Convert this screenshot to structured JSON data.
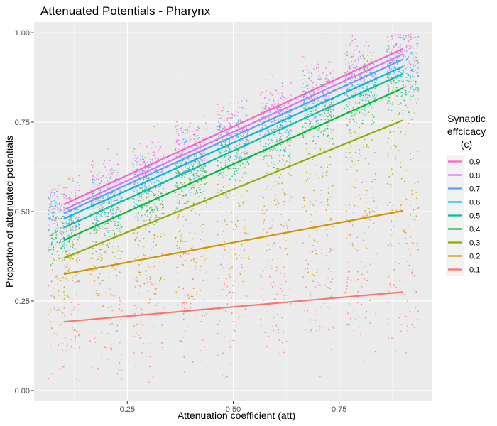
{
  "chart_data": {
    "type": "scatter",
    "title": "Attenuated Potentials - Pharynx",
    "xlabel": "Attenuation coefficient (att)",
    "ylabel": "Proportion of attenuated potentials",
    "xlim": [
      0.03,
      0.97
    ],
    "ylim": [
      0.0,
      1.0
    ],
    "x_ticks": [
      0.25,
      0.5,
      0.75
    ],
    "x_tick_labels": [
      "0.25",
      "0.50",
      "0.75"
    ],
    "y_ticks": [
      0.0,
      0.25,
      0.5,
      0.75,
      1.0
    ],
    "y_tick_labels": [
      "0.00",
      "0.25",
      "0.50",
      "0.75",
      "1.00"
    ],
    "grid": true,
    "legend": {
      "title_lines": [
        "Synaptic",
        "effcicacy",
        "(c)"
      ],
      "placement": "right"
    },
    "att_levels": [
      0.1,
      0.2,
      0.3,
      0.4,
      0.5,
      0.6,
      0.7,
      0.8,
      0.9
    ],
    "series": [
      {
        "name": "0.9",
        "color": "#FF61C3",
        "fit_x": [
          0.1,
          0.9
        ],
        "fit_y": [
          0.52,
          0.955
        ]
      },
      {
        "name": "0.8",
        "color": "#DB72FB",
        "fit_x": [
          0.1,
          0.9
        ],
        "fit_y": [
          0.505,
          0.94
        ]
      },
      {
        "name": "0.7",
        "color": "#619CFF",
        "fit_x": [
          0.1,
          0.9
        ],
        "fit_y": [
          0.495,
          0.925
        ]
      },
      {
        "name": "0.6",
        "color": "#00B9E3",
        "fit_x": [
          0.1,
          0.9
        ],
        "fit_y": [
          0.48,
          0.905
        ]
      },
      {
        "name": "0.5",
        "color": "#00C19F",
        "fit_x": [
          0.1,
          0.9
        ],
        "fit_y": [
          0.455,
          0.885
        ]
      },
      {
        "name": "0.4",
        "color": "#00BA38",
        "fit_x": [
          0.1,
          0.9
        ],
        "fit_y": [
          0.42,
          0.845
        ]
      },
      {
        "name": "0.3",
        "color": "#93AA00",
        "fit_x": [
          0.1,
          0.9
        ],
        "fit_y": [
          0.37,
          0.755
        ]
      },
      {
        "name": "0.2",
        "color": "#D39200",
        "fit_x": [
          0.1,
          0.9
        ],
        "fit_y": [
          0.325,
          0.502
        ]
      },
      {
        "name": "0.1",
        "color": "#F8766D",
        "fit_x": [
          0.1,
          0.9
        ],
        "fit_y": [
          0.192,
          0.275
        ]
      }
    ]
  }
}
